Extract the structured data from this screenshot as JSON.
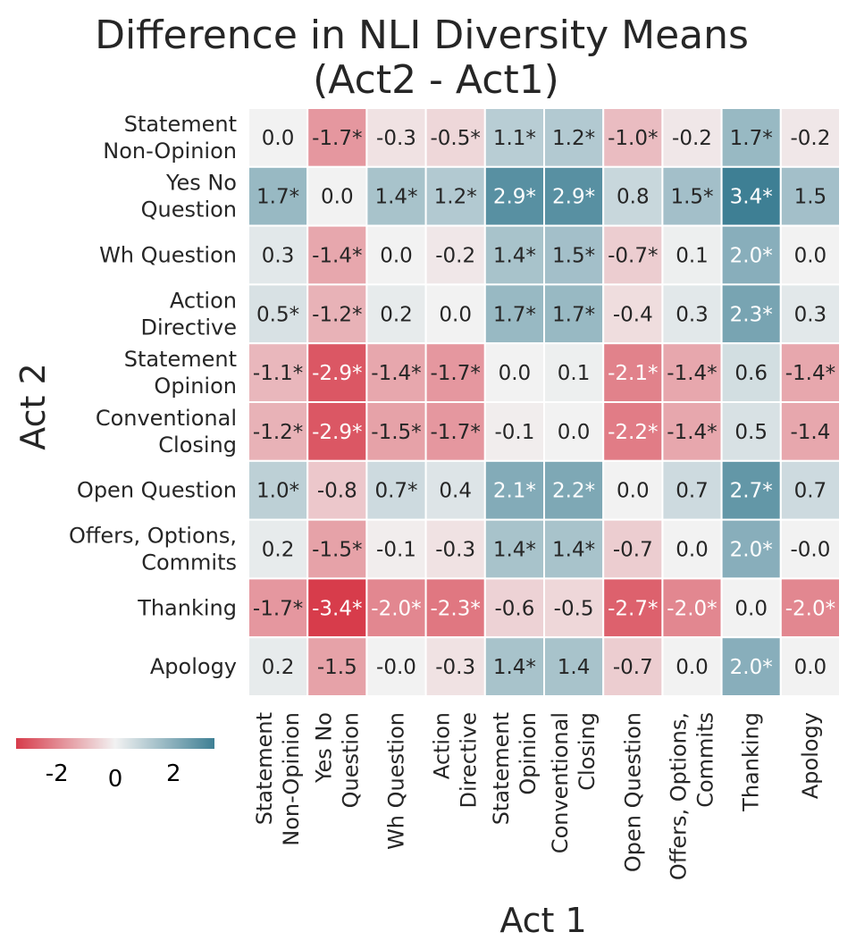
{
  "chart_data": {
    "type": "heatmap",
    "title": [
      "Difference in NLI Diversity Means",
      "(Act2 - Act1)"
    ],
    "xlabel": "Act 1",
    "ylabel": "Act 2",
    "x_categories": [
      [
        "Statement",
        "Non-Opinion"
      ],
      [
        "Yes No",
        "Question"
      ],
      [
        "Wh Question"
      ],
      [
        "Action",
        "Directive"
      ],
      [
        "Statement",
        "Opinion"
      ],
      [
        "Conventional",
        "Closing"
      ],
      [
        "Open Question"
      ],
      [
        "Offers, Options,",
        "Commits"
      ],
      [
        "Thanking"
      ],
      [
        "Apology"
      ]
    ],
    "y_categories": [
      [
        "Statement",
        "Non-Opinion"
      ],
      [
        "Yes No",
        "Question"
      ],
      [
        "Wh Question"
      ],
      [
        "Action",
        "Directive"
      ],
      [
        "Statement",
        "Opinion"
      ],
      [
        "Conventional",
        "Closing"
      ],
      [
        "Open Question"
      ],
      [
        "Offers, Options,",
        "Commits"
      ],
      [
        "Thanking"
      ],
      [
        "Apology"
      ]
    ],
    "values": [
      [
        0.0,
        -1.7,
        -0.3,
        -0.5,
        1.1,
        1.2,
        -1.0,
        -0.2,
        1.7,
        -0.2
      ],
      [
        1.7,
        0.0,
        1.4,
        1.2,
        2.9,
        2.9,
        0.8,
        1.5,
        3.4,
        1.5
      ],
      [
        0.3,
        -1.4,
        0.0,
        -0.2,
        1.4,
        1.5,
        -0.7,
        0.1,
        2.0,
        0.0
      ],
      [
        0.5,
        -1.2,
        0.2,
        0.0,
        1.7,
        1.7,
        -0.4,
        0.3,
        2.3,
        0.3
      ],
      [
        -1.1,
        -2.9,
        -1.4,
        -1.7,
        0.0,
        0.1,
        -2.1,
        -1.4,
        0.6,
        -1.4
      ],
      [
        -1.2,
        -2.9,
        -1.5,
        -1.7,
        -0.1,
        0.0,
        -2.2,
        -1.4,
        0.5,
        -1.4
      ],
      [
        1.0,
        -0.8,
        0.7,
        0.4,
        2.1,
        2.2,
        0.0,
        0.7,
        2.7,
        0.7
      ],
      [
        0.2,
        -1.5,
        -0.1,
        -0.3,
        1.4,
        1.4,
        -0.7,
        0.0,
        2.0,
        -0.0
      ],
      [
        -1.7,
        -3.4,
        -2.0,
        -2.3,
        -0.6,
        -0.5,
        -2.7,
        -2.0,
        0.0,
        -2.0
      ],
      [
        0.2,
        -1.5,
        -0.0,
        -0.3,
        1.4,
        1.4,
        -0.7,
        0.0,
        2.0,
        0.0
      ]
    ],
    "annotations": [
      [
        "0.0",
        "-1.7*",
        "-0.3",
        "-0.5*",
        "1.1*",
        "1.2*",
        "-1.0*",
        "-0.2",
        "1.7*",
        "-0.2"
      ],
      [
        "1.7*",
        "0.0",
        "1.4*",
        "1.2*",
        "2.9*",
        "2.9*",
        "0.8",
        "1.5*",
        "3.4*",
        "1.5"
      ],
      [
        "0.3",
        "-1.4*",
        "0.0",
        "-0.2",
        "1.4*",
        "1.5*",
        "-0.7*",
        "0.1",
        "2.0*",
        "0.0"
      ],
      [
        "0.5*",
        "-1.2*",
        "0.2",
        "0.0",
        "1.7*",
        "1.7*",
        "-0.4",
        "0.3",
        "2.3*",
        "0.3"
      ],
      [
        "-1.1*",
        "-2.9*",
        "-1.4*",
        "-1.7*",
        "0.0",
        "0.1",
        "-2.1*",
        "-1.4*",
        "0.6",
        "-1.4*"
      ],
      [
        "-1.2*",
        "-2.9*",
        "-1.5*",
        "-1.7*",
        "-0.1",
        "0.0",
        "-2.2*",
        "-1.4*",
        "0.5",
        "-1.4"
      ],
      [
        "1.0*",
        "-0.8",
        "0.7*",
        "0.4",
        "2.1*",
        "2.2*",
        "0.0",
        "0.7",
        "2.7*",
        "0.7"
      ],
      [
        "0.2",
        "-1.5*",
        "-0.1",
        "-0.3",
        "1.4*",
        "1.4*",
        "-0.7",
        "0.0",
        "2.0*",
        "-0.0"
      ],
      [
        "-1.7*",
        "-3.4*",
        "-2.0*",
        "-2.3*",
        "-0.6",
        "-0.5",
        "-2.7*",
        "-2.0*",
        "0.0",
        "-2.0*"
      ],
      [
        "0.2",
        "-1.5",
        "-0.0",
        "-0.3",
        "1.4*",
        "1.4",
        "-0.7",
        "0.0",
        "2.0*",
        "0.0"
      ]
    ],
    "colorscale": {
      "min": -3.4,
      "max": 3.4,
      "negative_color": "#d73c4b",
      "center_color": "#f2f2f2",
      "positive_color": "#3e7f94"
    },
    "colorbar": {
      "orientation": "horizontal",
      "placement": "bottom-left",
      "ticks": [
        -2,
        0,
        2
      ],
      "tick_labels": [
        "-2",
        "0",
        "2"
      ]
    }
  }
}
